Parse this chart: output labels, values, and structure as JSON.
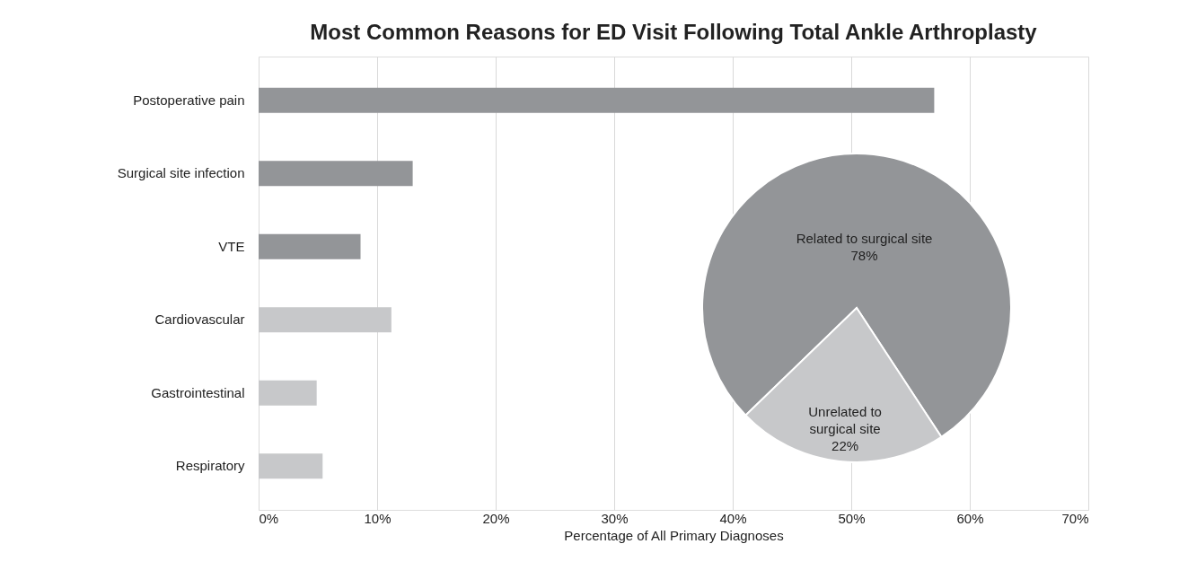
{
  "chart_data": [
    {
      "type": "bar",
      "title": "Most Common Reasons for ED Visit Following Total Ankle Arthroplasty",
      "xlabel": "Percentage of All Primary Diagnoses",
      "orientation": "horizontal",
      "categories": [
        "Postoperative pain",
        "Surgical site infection",
        "VTE",
        "Cardiovascular",
        "Gastrointestinal",
        "Respiratory"
      ],
      "values": [
        57,
        13,
        8.6,
        11.2,
        4.9,
        5.4
      ],
      "colors": [
        "#939598",
        "#939598",
        "#939598",
        "#c7c8ca",
        "#c7c8ca",
        "#c7c8ca"
      ],
      "xlim": [
        0,
        70
      ],
      "xticks": [
        {
          "value": 0,
          "label": "0%"
        },
        {
          "value": 10,
          "label": "10%"
        },
        {
          "value": 20,
          "label": "20%"
        },
        {
          "value": 30,
          "label": "30%"
        },
        {
          "value": 40,
          "label": "40%"
        },
        {
          "value": 50,
          "label": "50%"
        },
        {
          "value": 60,
          "label": "60%"
        },
        {
          "value": 70,
          "label": "70%"
        }
      ],
      "grid": "x"
    },
    {
      "type": "pie",
      "categories": [
        "Related to surgical site",
        "Unrelated to surgical site"
      ],
      "values": [
        78,
        22
      ],
      "colors": [
        "#939598",
        "#c7c8ca"
      ],
      "value_labels": [
        "78%",
        "22%"
      ]
    }
  ]
}
